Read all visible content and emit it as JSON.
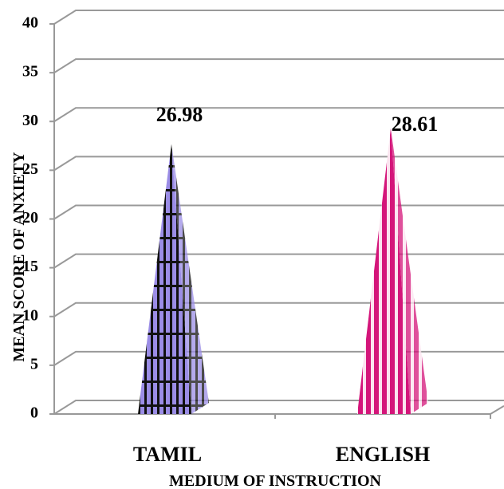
{
  "chart_data": {
    "type": "bar3d-pyramid",
    "categories": [
      "TAMIL",
      "ENGLISH"
    ],
    "values": [
      26.98,
      28.61
    ],
    "colors": [
      "#9b8de6",
      "#d4157a"
    ],
    "ylim": [
      0,
      40
    ],
    "yticks": [
      0,
      5,
      10,
      15,
      20,
      25,
      30,
      35,
      40
    ],
    "grid": true,
    "y_label": "MEAN SCORE OF ANXIETY",
    "x_label": "MEDIUM OF INSTRUCTION"
  }
}
